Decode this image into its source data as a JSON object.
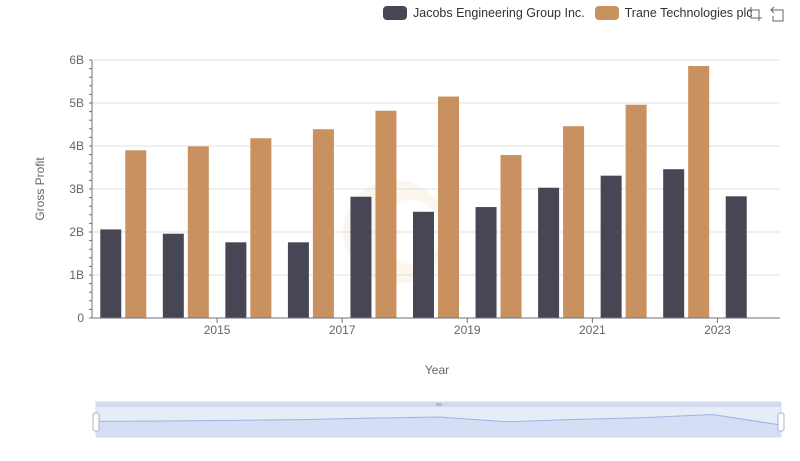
{
  "legend": {
    "items": [
      {
        "label": "Jacobs Engineering Group Inc.",
        "color": "#464655"
      },
      {
        "label": "Trane Technologies plc",
        "color": "#c8915f"
      }
    ]
  },
  "toolbox": {
    "icons": [
      "zoom-icon",
      "restore-icon"
    ]
  },
  "chart_data": {
    "type": "bar",
    "xlabel": "Year",
    "ylabel": "Gross Profit",
    "ylim": [
      0,
      6000000000
    ],
    "y_ticks": [
      "0",
      "1B",
      "2B",
      "3B",
      "4B",
      "5B",
      "6B"
    ],
    "categories": [
      "2014",
      "2015",
      "2016",
      "2017",
      "2018",
      "2019",
      "2020",
      "2021",
      "2022",
      "2023",
      "2024"
    ],
    "x_tick_labels": [
      "2015",
      "2017",
      "2019",
      "2021",
      "2023"
    ],
    "series": [
      {
        "name": "Jacobs Engineering Group Inc.",
        "color": "#464655",
        "values": [
          2060000000,
          1960000000,
          1760000000,
          1760000000,
          2820000000,
          2470000000,
          2580000000,
          3030000000,
          3310000000,
          3460000000,
          2830000000
        ]
      },
      {
        "name": "Trane Technologies plc",
        "color": "#c8915f",
        "values": [
          3900000000,
          3990000000,
          4180000000,
          4390000000,
          4820000000,
          5150000000,
          3790000000,
          4460000000,
          4960000000,
          5860000000,
          null
        ]
      }
    ],
    "grid": true,
    "legend_position": "top-right",
    "data_zoom": {
      "range": [
        0,
        100
      ]
    }
  }
}
